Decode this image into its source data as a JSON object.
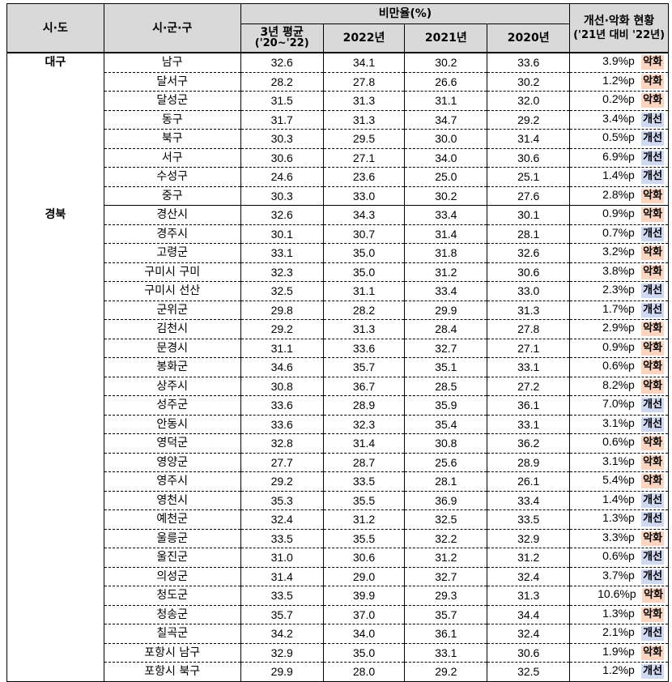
{
  "header": {
    "col_region": "시·도",
    "col_district": "시·군·구",
    "group_obesity": "비만율(%)",
    "col_avg3_line1": "3년 평균",
    "col_avg3_line2": "('20~'22)",
    "col_2022": "2022년",
    "col_2021": "2021년",
    "col_2020": "2020년",
    "col_status_line1": "개선·악화 현황",
    "col_status_line2": "('21년 대비 '22년)"
  },
  "badge_labels": {
    "worse": "악화",
    "better": "개선"
  },
  "colors": {
    "worse_bg": "#fbd5c0",
    "better_bg": "#cfd9f2",
    "header_bg": "#d9d9d9"
  },
  "groups": [
    {
      "region": "대구",
      "rows": [
        {
          "district": "남구",
          "avg3": "32.6",
          "y2022": "34.1",
          "y2021": "30.2",
          "y2020": "33.6",
          "diff": "3.9%p",
          "status": "악화"
        },
        {
          "district": "달서구",
          "avg3": "28.2",
          "y2022": "27.8",
          "y2021": "26.6",
          "y2020": "30.2",
          "diff": "1.2%p",
          "status": "악화"
        },
        {
          "district": "달성군",
          "avg3": "31.5",
          "y2022": "31.3",
          "y2021": "31.1",
          "y2020": "32.0",
          "diff": "0.2%p",
          "status": "악화"
        },
        {
          "district": "동구",
          "avg3": "31.7",
          "y2022": "31.3",
          "y2021": "34.7",
          "y2020": "29.2",
          "diff": "3.4%p",
          "status": "개선"
        },
        {
          "district": "북구",
          "avg3": "30.3",
          "y2022": "29.5",
          "y2021": "30.0",
          "y2020": "31.4",
          "diff": "0.5%p",
          "status": "개선"
        },
        {
          "district": "서구",
          "avg3": "30.6",
          "y2022": "27.1",
          "y2021": "34.0",
          "y2020": "30.6",
          "diff": "6.9%p",
          "status": "개선"
        },
        {
          "district": "수성구",
          "avg3": "24.6",
          "y2022": "23.6",
          "y2021": "25.0",
          "y2020": "25.1",
          "diff": "1.4%p",
          "status": "개선"
        },
        {
          "district": "중구",
          "avg3": "30.3",
          "y2022": "33.0",
          "y2021": "30.2",
          "y2020": "27.6",
          "diff": "2.8%p",
          "status": "악화"
        }
      ]
    },
    {
      "region": "경북",
      "rows": [
        {
          "district": "경산시",
          "avg3": "32.6",
          "y2022": "34.3",
          "y2021": "33.4",
          "y2020": "30.1",
          "diff": "0.9%p",
          "status": "악화"
        },
        {
          "district": "경주시",
          "avg3": "30.1",
          "y2022": "30.7",
          "y2021": "31.4",
          "y2020": "28.1",
          "diff": "0.7%p",
          "status": "개선"
        },
        {
          "district": "고령군",
          "avg3": "33.1",
          "y2022": "35.0",
          "y2021": "31.8",
          "y2020": "32.6",
          "diff": "3.2%p",
          "status": "악화"
        },
        {
          "district": "구미시 구미",
          "avg3": "32.3",
          "y2022": "35.0",
          "y2021": "31.2",
          "y2020": "30.6",
          "diff": "3.8%p",
          "status": "악화"
        },
        {
          "district": "구미시 선산",
          "avg3": "32.5",
          "y2022": "31.1",
          "y2021": "33.4",
          "y2020": "33.0",
          "diff": "2.3%p",
          "status": "개선"
        },
        {
          "district": "군위군",
          "avg3": "29.8",
          "y2022": "28.2",
          "y2021": "29.9",
          "y2020": "31.3",
          "diff": "1.7%p",
          "status": "개선"
        },
        {
          "district": "김천시",
          "avg3": "29.2",
          "y2022": "31.3",
          "y2021": "28.4",
          "y2020": "27.8",
          "diff": "2.9%p",
          "status": "악화"
        },
        {
          "district": "문경시",
          "avg3": "31.1",
          "y2022": "33.6",
          "y2021": "32.7",
          "y2020": "27.1",
          "diff": "0.9%p",
          "status": "악화"
        },
        {
          "district": "봉화군",
          "avg3": "34.6",
          "y2022": "35.7",
          "y2021": "35.1",
          "y2020": "33.1",
          "diff": "0.6%p",
          "status": "악화"
        },
        {
          "district": "상주시",
          "avg3": "30.8",
          "y2022": "36.7",
          "y2021": "28.5",
          "y2020": "27.2",
          "diff": "8.2%p",
          "status": "악화"
        },
        {
          "district": "성주군",
          "avg3": "33.6",
          "y2022": "28.9",
          "y2021": "35.9",
          "y2020": "36.1",
          "diff": "7.0%p",
          "status": "개선"
        },
        {
          "district": "안동시",
          "avg3": "33.6",
          "y2022": "32.3",
          "y2021": "35.4",
          "y2020": "33.1",
          "diff": "3.1%p",
          "status": "개선"
        },
        {
          "district": "영덕군",
          "avg3": "32.8",
          "y2022": "31.4",
          "y2021": "30.8",
          "y2020": "36.2",
          "diff": "0.6%p",
          "status": "악화"
        },
        {
          "district": "영양군",
          "avg3": "27.7",
          "y2022": "28.7",
          "y2021": "25.6",
          "y2020": "28.9",
          "diff": "3.1%p",
          "status": "악화"
        },
        {
          "district": "영주시",
          "avg3": "29.2",
          "y2022": "33.5",
          "y2021": "28.1",
          "y2020": "26.1",
          "diff": "5.4%p",
          "status": "악화"
        },
        {
          "district": "영천시",
          "avg3": "35.3",
          "y2022": "35.5",
          "y2021": "36.9",
          "y2020": "33.4",
          "diff": "1.4%p",
          "status": "개선"
        },
        {
          "district": "예천군",
          "avg3": "32.4",
          "y2022": "31.2",
          "y2021": "32.5",
          "y2020": "33.5",
          "diff": "1.3%p",
          "status": "개선"
        },
        {
          "district": "울릉군",
          "avg3": "33.5",
          "y2022": "35.5",
          "y2021": "32.2",
          "y2020": "32.9",
          "diff": "3.3%p",
          "status": "악화"
        },
        {
          "district": "울진군",
          "avg3": "31.0",
          "y2022": "30.6",
          "y2021": "31.2",
          "y2020": "31.2",
          "diff": "0.6%p",
          "status": "개선"
        },
        {
          "district": "의성군",
          "avg3": "31.4",
          "y2022": "29.0",
          "y2021": "32.7",
          "y2020": "32.4",
          "diff": "3.7%p",
          "status": "개선"
        },
        {
          "district": "청도군",
          "avg3": "33.5",
          "y2022": "39.9",
          "y2021": "29.3",
          "y2020": "31.3",
          "diff": "10.6%p",
          "status": "악화"
        },
        {
          "district": "청송군",
          "avg3": "35.7",
          "y2022": "37.0",
          "y2021": "35.7",
          "y2020": "34.4",
          "diff": "1.3%p",
          "status": "악화"
        },
        {
          "district": "칠곡군",
          "avg3": "34.2",
          "y2022": "34.0",
          "y2021": "36.1",
          "y2020": "32.4",
          "diff": "2.1%p",
          "status": "개선"
        },
        {
          "district": "포항시 남구",
          "avg3": "32.9",
          "y2022": "35.0",
          "y2021": "33.1",
          "y2020": "30.6",
          "diff": "1.9%p",
          "status": "악화"
        },
        {
          "district": "포항시 북구",
          "avg3": "29.9",
          "y2022": "28.0",
          "y2021": "29.2",
          "y2020": "32.5",
          "diff": "1.2%p",
          "status": "개선"
        }
      ]
    }
  ]
}
